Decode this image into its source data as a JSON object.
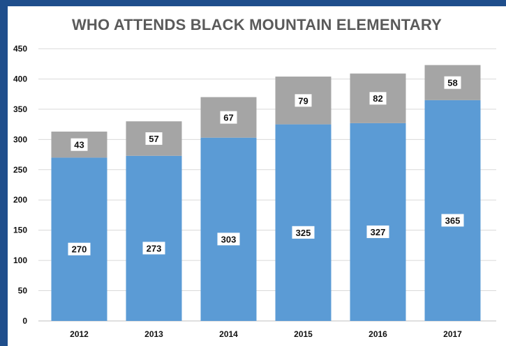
{
  "chart_data": {
    "type": "bar",
    "stacked": true,
    "title": "WHO ATTENDS BLACK MOUNTAIN ELEMENTARY",
    "categories": [
      "2012",
      "2013",
      "2014",
      "2015",
      "2016",
      "2017"
    ],
    "series": [
      {
        "values": [
          270,
          273,
          303,
          325,
          327,
          365
        ],
        "color": "#5b9bd5"
      },
      {
        "values": [
          43,
          57,
          67,
          79,
          82,
          58
        ],
        "color": "#a5a5a5"
      }
    ],
    "yticks": [
      "0",
      "50",
      "100",
      "150",
      "200",
      "250",
      "300",
      "350",
      "400",
      "450"
    ],
    "ylim": [
      0,
      450
    ],
    "grid": true,
    "legend": "none"
  }
}
